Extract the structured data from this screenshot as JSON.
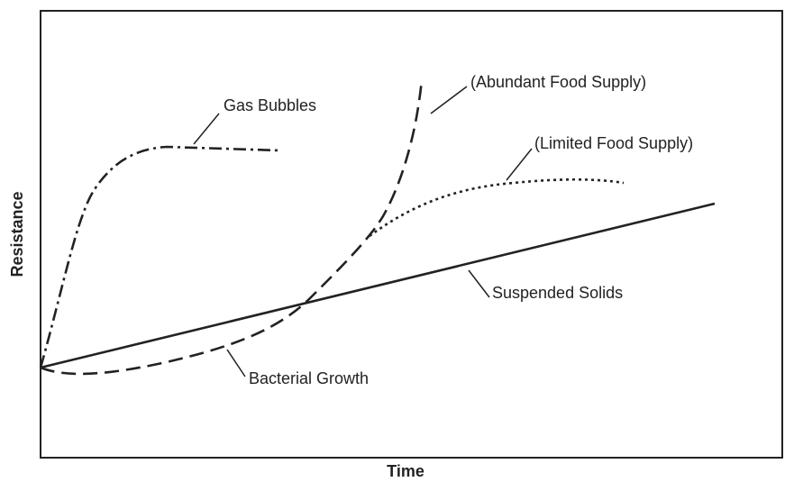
{
  "axes": {
    "x_label": "Time",
    "y_label": "Resistance"
  },
  "curves": [
    {
      "label": "Gas Bubbles"
    },
    {
      "label": "(Abundant Food Supply)"
    },
    {
      "label": "(Limited Food Supply)"
    },
    {
      "label": "Suspended Solids"
    },
    {
      "label": "Bacterial Growth"
    }
  ]
}
